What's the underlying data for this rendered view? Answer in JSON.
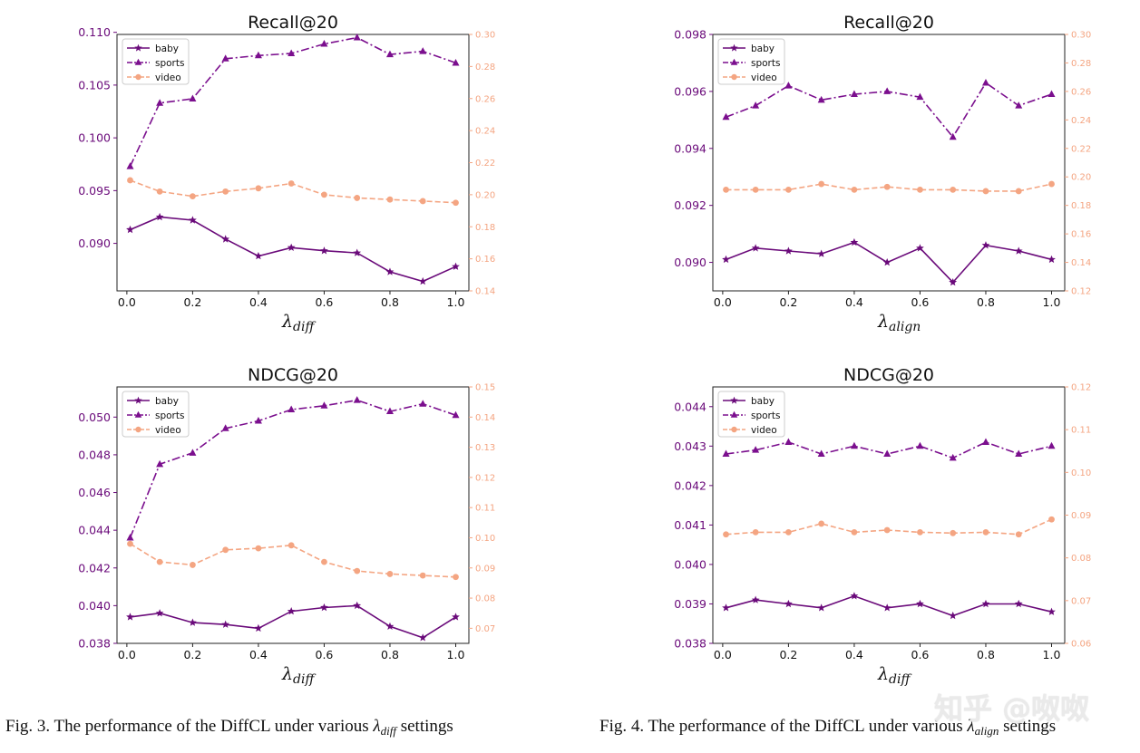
{
  "chart_data": [
    {
      "type": "line",
      "title": "Recall@20",
      "xlabel_symbol": "λ",
      "xlabel_sub": "diff",
      "x": [
        0.01,
        0.1,
        0.2,
        0.3,
        0.4,
        0.5,
        0.6,
        0.7,
        0.8,
        0.9,
        1.0
      ],
      "xticks": [
        "0.0",
        "0.2",
        "0.4",
        "0.6",
        "0.8",
        "1.0"
      ],
      "ylim_left": [
        0.0855,
        0.1098
      ],
      "yticks_left": [
        "0.090",
        "0.095",
        "0.100",
        "0.105",
        "0.110"
      ],
      "ylim_right": [
        0.14,
        0.3
      ],
      "yticks_right": [
        "0.14",
        "0.16",
        "0.18",
        "0.20",
        "0.22",
        "0.24",
        "0.26",
        "0.28",
        "0.30"
      ],
      "series": [
        {
          "name": "baby",
          "axis": "left",
          "values": [
            0.0913,
            0.0925,
            0.0922,
            0.0904,
            0.0888,
            0.0896,
            0.0893,
            0.0891,
            0.0873,
            0.0864,
            0.0878
          ]
        },
        {
          "name": "sports",
          "axis": "left",
          "values": [
            0.0973,
            0.1033,
            0.1037,
            0.1075,
            0.1078,
            0.108,
            0.1089,
            0.1095,
            0.1079,
            0.1082,
            0.1071
          ]
        },
        {
          "name": "video",
          "axis": "right",
          "values": [
            0.209,
            0.202,
            0.199,
            0.202,
            0.204,
            0.207,
            0.2,
            0.198,
            0.197,
            0.196,
            0.195
          ]
        }
      ]
    },
    {
      "type": "line",
      "title": "Recall@20",
      "xlabel_symbol": "λ",
      "xlabel_sub": "align",
      "x": [
        0.01,
        0.1,
        0.2,
        0.3,
        0.4,
        0.5,
        0.6,
        0.7,
        0.8,
        0.9,
        1.0
      ],
      "xticks": [
        "0.0",
        "0.2",
        "0.4",
        "0.6",
        "0.8",
        "1.0"
      ],
      "ylim_left": [
        0.089,
        0.098
      ],
      "yticks_left": [
        "0.090",
        "0.092",
        "0.094",
        "0.096",
        "0.098"
      ],
      "ylim_right": [
        0.12,
        0.3
      ],
      "yticks_right": [
        "0.12",
        "0.14",
        "0.16",
        "0.18",
        "0.20",
        "0.22",
        "0.24",
        "0.26",
        "0.28",
        "0.30"
      ],
      "series": [
        {
          "name": "baby",
          "axis": "left",
          "values": [
            0.0901,
            0.0905,
            0.0904,
            0.0903,
            0.0907,
            0.09,
            0.0905,
            0.0893,
            0.0906,
            0.0904,
            0.0901
          ]
        },
        {
          "name": "sports",
          "axis": "left",
          "values": [
            0.0951,
            0.0955,
            0.0962,
            0.0957,
            0.0959,
            0.096,
            0.0958,
            0.0944,
            0.0963,
            0.0955,
            0.0959
          ]
        },
        {
          "name": "video",
          "axis": "right",
          "values": [
            0.191,
            0.191,
            0.191,
            0.195,
            0.191,
            0.193,
            0.191,
            0.191,
            0.19,
            0.19,
            0.195
          ]
        }
      ]
    },
    {
      "type": "line",
      "title": "NDCG@20",
      "xlabel_symbol": "λ",
      "xlabel_sub": "diff",
      "x": [
        0.01,
        0.1,
        0.2,
        0.3,
        0.4,
        0.5,
        0.6,
        0.7,
        0.8,
        0.9,
        1.0
      ],
      "xticks": [
        "0.0",
        "0.2",
        "0.4",
        "0.6",
        "0.8",
        "1.0"
      ],
      "ylim_left": [
        0.038,
        0.0516
      ],
      "yticks_left": [
        "0.038",
        "0.040",
        "0.042",
        "0.044",
        "0.046",
        "0.048",
        "0.050"
      ],
      "ylim_right": [
        0.065,
        0.15
      ],
      "yticks_right": [
        "0.07",
        "0.08",
        "0.09",
        "0.10",
        "0.11",
        "0.12",
        "0.13",
        "0.14",
        "0.15"
      ],
      "series": [
        {
          "name": "baby",
          "axis": "left",
          "values": [
            0.0394,
            0.0396,
            0.0391,
            0.039,
            0.0388,
            0.0397,
            0.0399,
            0.04,
            0.0389,
            0.0383,
            0.0394
          ]
        },
        {
          "name": "sports",
          "axis": "left",
          "values": [
            0.0436,
            0.0475,
            0.0481,
            0.0494,
            0.0498,
            0.0504,
            0.0506,
            0.0509,
            0.0503,
            0.0507,
            0.0501
          ]
        },
        {
          "name": "video",
          "axis": "right",
          "values": [
            0.098,
            0.092,
            0.091,
            0.096,
            0.0965,
            0.0975,
            0.092,
            0.089,
            0.088,
            0.0875,
            0.087
          ]
        }
      ]
    },
    {
      "type": "line",
      "title": "NDCG@20",
      "xlabel_symbol": "λ",
      "xlabel_sub": "diff",
      "x": [
        0.01,
        0.1,
        0.2,
        0.3,
        0.4,
        0.5,
        0.6,
        0.7,
        0.8,
        0.9,
        1.0
      ],
      "xticks": [
        "0.0",
        "0.2",
        "0.4",
        "0.6",
        "0.8",
        "1.0"
      ],
      "ylim_left": [
        0.038,
        0.0445
      ],
      "yticks_left": [
        "0.038",
        "0.039",
        "0.040",
        "0.041",
        "0.042",
        "0.043",
        "0.044"
      ],
      "ylim_right": [
        0.06,
        0.12
      ],
      "yticks_right": [
        "0.06",
        "0.07",
        "0.08",
        "0.09",
        "0.10",
        "0.11",
        "0.12"
      ],
      "series": [
        {
          "name": "baby",
          "axis": "left",
          "values": [
            0.0389,
            0.0391,
            0.039,
            0.0389,
            0.0392,
            0.0389,
            0.039,
            0.0387,
            0.039,
            0.039,
            0.0388
          ]
        },
        {
          "name": "sports",
          "axis": "left",
          "values": [
            0.0428,
            0.0429,
            0.0431,
            0.0428,
            0.043,
            0.0428,
            0.043,
            0.0427,
            0.0431,
            0.0428,
            0.043
          ]
        },
        {
          "name": "video",
          "axis": "right",
          "values": [
            0.0855,
            0.086,
            0.086,
            0.088,
            0.086,
            0.0865,
            0.086,
            0.0858,
            0.086,
            0.0855,
            0.089
          ]
        }
      ]
    }
  ],
  "colors": {
    "baby": "#6a0a7a",
    "sports": "#7b0f8e",
    "video": "#f4a582",
    "left_axis": "#6a0a7a",
    "right_axis": "#f4a582"
  },
  "captions": {
    "fig3": {
      "prefix": "Fig. 3.  The performance of the DiffCL under various ",
      "sym": "λ",
      "sub": "diff",
      "suffix": " settings"
    },
    "fig4": {
      "prefix": "Fig. 4.  The performance of the DiffCL under various ",
      "sym": "λ",
      "sub": "align",
      "suffix": " settings"
    }
  },
  "watermark": "知乎 @呶呶"
}
